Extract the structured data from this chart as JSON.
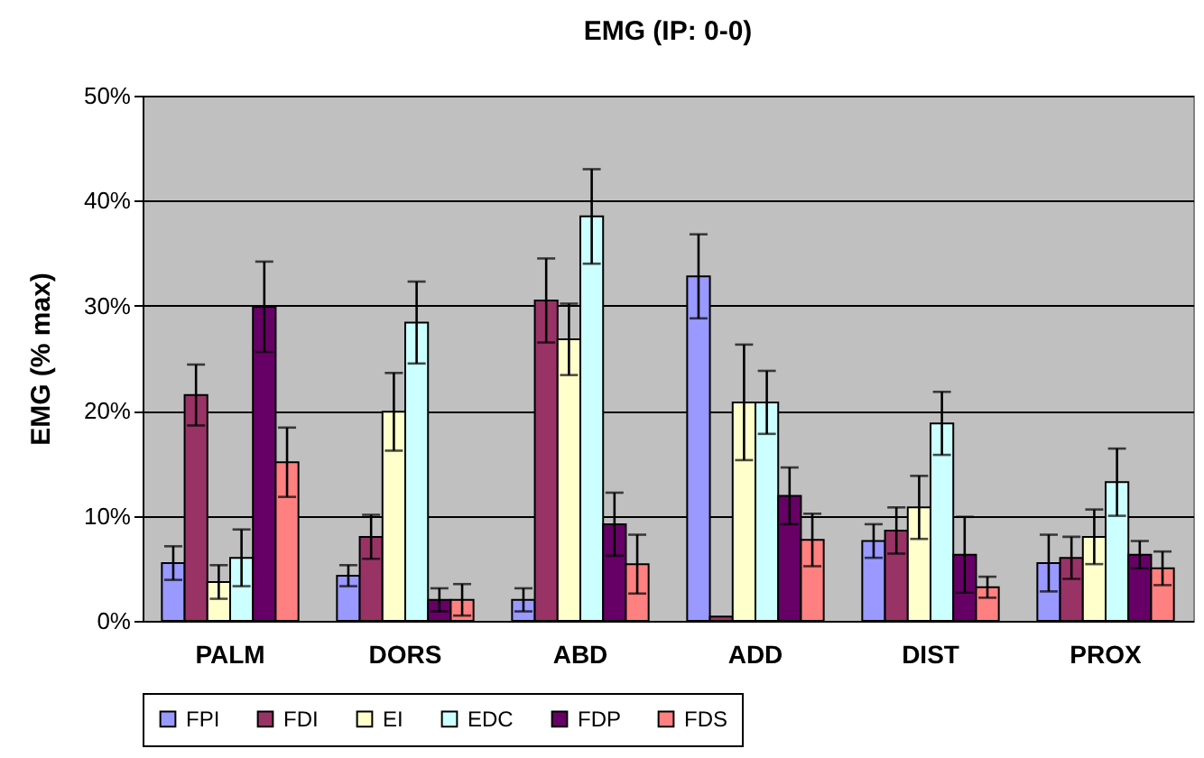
{
  "chart_data": {
    "type": "bar",
    "title": "EMG (IP: 0-0)",
    "ylabel": "EMG (% max)",
    "categories": [
      "PALM",
      "DORS",
      "ABD",
      "ADD",
      "DIST",
      "PROX"
    ],
    "series": [
      {
        "name": "FPI",
        "color": "#9999ff",
        "values": [
          5.5,
          4.3,
          2.0,
          32.8,
          7.6,
          5.5
        ],
        "errors": [
          1.6,
          1.0,
          1.1,
          4.0,
          1.6,
          2.7
        ]
      },
      {
        "name": "FDI",
        "color": "#993366",
        "values": [
          21.5,
          8.0,
          30.5,
          0.4,
          8.6,
          6.0
        ],
        "errors": [
          2.9,
          2.1,
          4.0,
          null,
          2.2,
          2.0
        ]
      },
      {
        "name": "EI",
        "color": "#ffffcc",
        "values": [
          3.7,
          19.9,
          26.8,
          20.8,
          10.8,
          8.0
        ],
        "errors": [
          1.6,
          3.7,
          3.4,
          5.5,
          3.0,
          2.6
        ]
      },
      {
        "name": "EDC",
        "color": "#ccffff",
        "values": [
          6.0,
          28.4,
          38.5,
          20.8,
          18.8,
          13.2
        ],
        "errors": [
          2.7,
          3.9,
          4.5,
          3.0,
          3.0,
          3.2
        ]
      },
      {
        "name": "FDP",
        "color": "#660066",
        "values": [
          29.9,
          2.0,
          9.2,
          11.9,
          6.3,
          6.3
        ],
        "errors": [
          4.3,
          1.1,
          3.0,
          2.7,
          3.6,
          1.3
        ]
      },
      {
        "name": "FDS",
        "color": "#ff8080",
        "values": [
          15.1,
          2.0,
          5.4,
          7.7,
          3.2,
          5.0
        ],
        "errors": [
          3.3,
          1.5,
          2.8,
          2.5,
          1.0,
          1.6
        ]
      }
    ],
    "ylim": [
      0,
      50
    ],
    "yticks": [
      {
        "value": 0,
        "label": "0%"
      },
      {
        "value": 10,
        "label": "10%"
      },
      {
        "value": 20,
        "label": "20%"
      },
      {
        "value": 30,
        "label": "30%"
      },
      {
        "value": 40,
        "label": "40%"
      },
      {
        "value": 50,
        "label": "50%"
      }
    ],
    "grid": "y",
    "legend": "bottom"
  }
}
